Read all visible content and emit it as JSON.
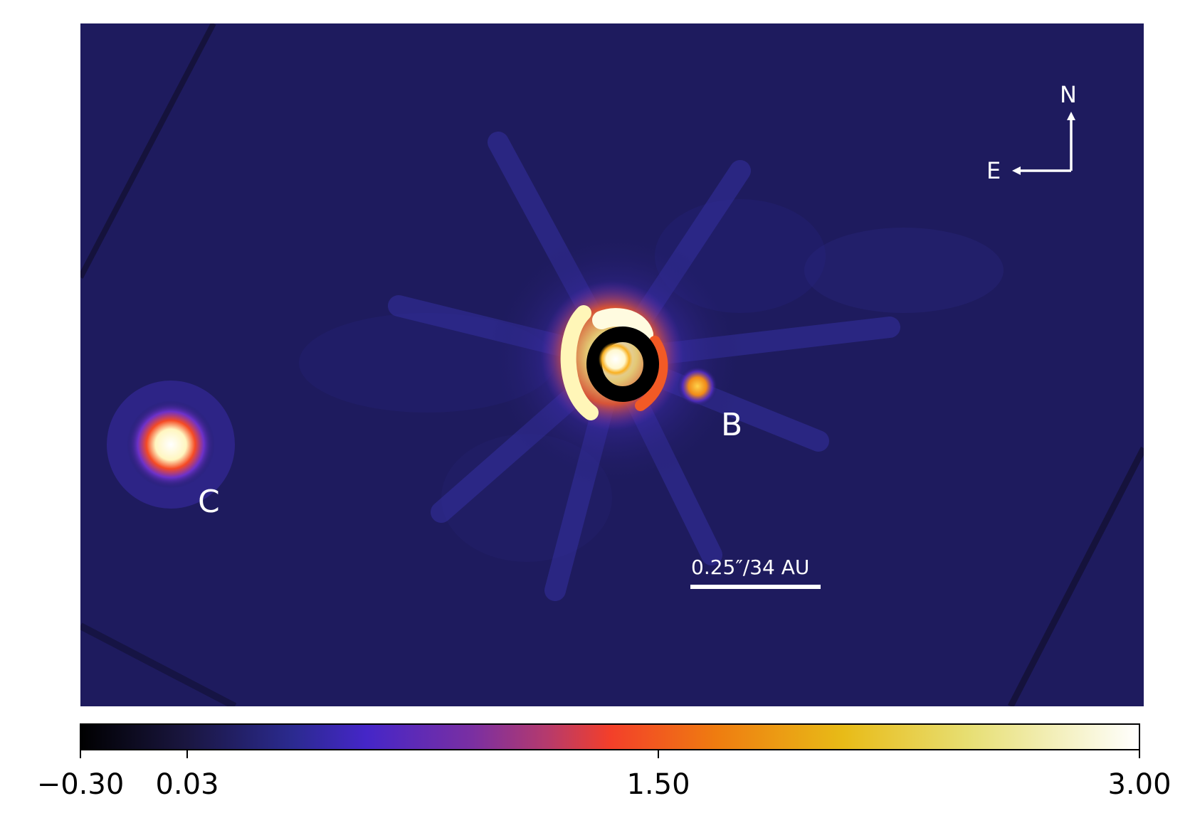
{
  "image": {
    "description_colors": {
      "background": "#1f1b5e",
      "frame_white": "#ffffff"
    },
    "labels": {
      "companion_b": "B",
      "companion_c": "C",
      "north": "N",
      "east": "E",
      "scale_bar": "0.25″/34 AU"
    }
  },
  "colorbar": {
    "colormap": "CMRmap-like",
    "min": -0.3,
    "max": 3.0,
    "ticks": [
      "−0.30",
      "0.03",
      "1.50",
      "3.00"
    ],
    "tick_values": [
      -0.3,
      0.03,
      1.5,
      3.0
    ]
  }
}
